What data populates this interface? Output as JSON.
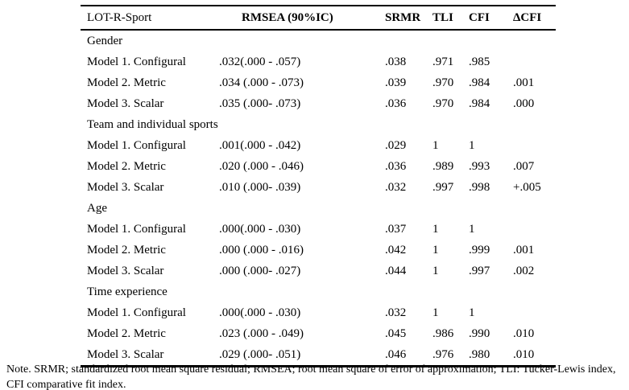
{
  "table": {
    "headers": {
      "col1": "LOT-R-Sport",
      "col2": "RMSEA (90%IC)",
      "col3": "SRMR",
      "col4": "TLI",
      "col5": "CFI",
      "col6": "ΔCFI"
    },
    "sections": [
      {
        "label": "Gender",
        "rows": [
          {
            "label": "Model 1. Configural",
            "rmsea": ".032(.000 - .057)",
            "srmr": ".038",
            "tli": ".971",
            "cfi": ".985",
            "dcfi": ""
          },
          {
            "label": "Model 2. Metric",
            "rmsea": ".034 (.000 - .073)",
            "srmr": ".039",
            "tli": ".970",
            "cfi": ".984",
            "dcfi": ".001"
          },
          {
            "label": "Model 3. Scalar",
            "rmsea": ".035 (.000- .073)",
            "srmr": ".036",
            "tli": ".970",
            "cfi": ".984",
            "dcfi": ".000"
          }
        ]
      },
      {
        "label": "Team and individual sports",
        "rows": [
          {
            "label": "Model 1. Configural",
            "rmsea": ".001(.000 - .042)",
            "srmr": ".029",
            "tli": "1",
            "cfi": "1",
            "dcfi": ""
          },
          {
            "label": "Model 2. Metric",
            "rmsea": ".020 (.000 - .046)",
            "srmr": ".036",
            "tli": ".989",
            "cfi": ".993",
            "dcfi": ".007"
          },
          {
            "label": "Model 3. Scalar",
            "rmsea": ".010 (.000- .039)",
            "srmr": ".032",
            "tli": ".997",
            "cfi": ".998",
            "dcfi": "+.005"
          }
        ]
      },
      {
        "label": "Age",
        "rows": [
          {
            "label": "Model 1. Configural",
            "rmsea": ".000(.000 - .030)",
            "srmr": ".037",
            "tli": "1",
            "cfi": "1",
            "dcfi": ""
          },
          {
            "label": "Model 2. Metric",
            "rmsea": ".000 (.000 - .016)",
            "srmr": ".042",
            "tli": "1",
            "cfi": ".999",
            "dcfi": ".001"
          },
          {
            "label": "Model 3. Scalar",
            "rmsea": ".000 (.000- .027)",
            "srmr": ".044",
            "tli": "1",
            "cfi": ".997",
            "dcfi": ".002"
          }
        ]
      },
      {
        "label": "Time experience",
        "rows": [
          {
            "label": "Model 1. Configural",
            "rmsea": ".000(.000 - .030)",
            "srmr": ".032",
            "tli": "1",
            "cfi": "1",
            "dcfi": ""
          },
          {
            "label": "Model 2. Metric",
            "rmsea": ".023 (.000 - .049)",
            "srmr": ".045",
            "tli": ".986",
            "cfi": ".990",
            "dcfi": ".010"
          },
          {
            "label": "Model 3. Scalar",
            "rmsea": ".029 (.000- .051)",
            "srmr": ".046",
            "tli": ".976",
            "cfi": ".980",
            "dcfi": ".010"
          }
        ]
      }
    ]
  },
  "note": "Note. SRMR; standardized root mean square residual; RMSEA; root mean square of error of approximation; TLI: Tucker-Lewis index, CFI comparative fit index."
}
